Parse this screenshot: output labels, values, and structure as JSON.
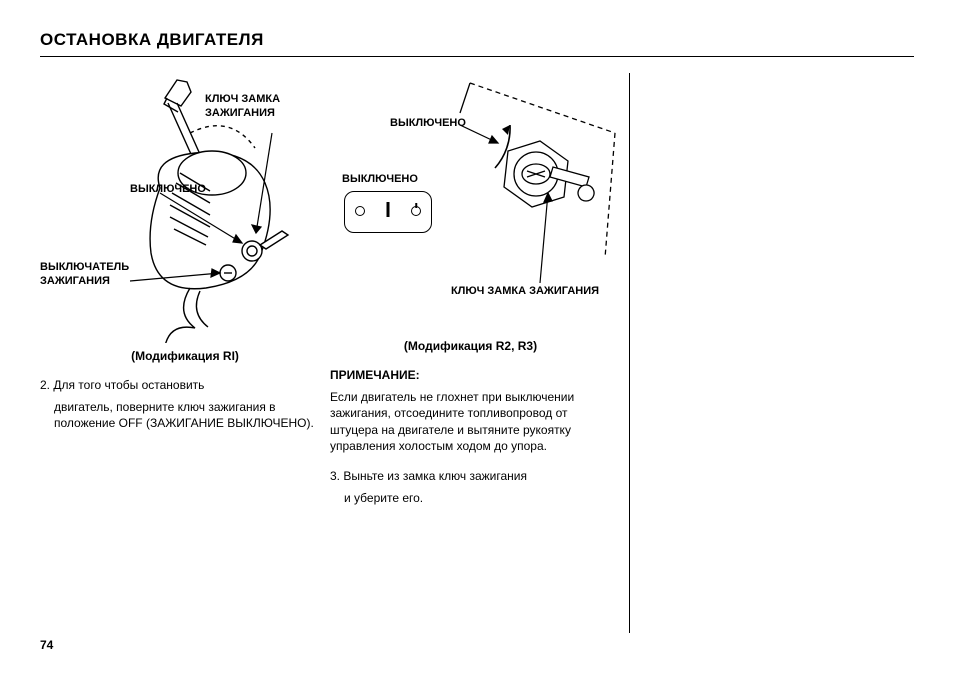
{
  "page": {
    "title": "ОСТАНОВКА ДВИГАТЕЛЯ",
    "number": "74"
  },
  "left": {
    "labels": {
      "ignition_key": "КЛЮЧ ЗАМКА\nЗАЖИГАНИЯ",
      "off": "ВЫКЛЮЧЕНО",
      "ignition_switch": "ВЫКЛЮЧАТЕЛЬ\nЗАЖИГАНИЯ"
    },
    "modification": "(Модификация RI)",
    "step2": "2. Для того чтобы остановить",
    "step2_cont": "двигатель, поверните ключ зажигания в положение OFF (ЗАЖИГАНИЕ ВЫКЛЮЧЕНО)."
  },
  "mid": {
    "labels": {
      "off_arrow": "ВЫКЛЮЧЕНО",
      "off_plate": "ВЫКЛЮЧЕНО",
      "ignition_key": "КЛЮЧ ЗАМКА ЗАЖИГАНИЯ"
    },
    "modification": "(Модификация R2, R3)",
    "note_hdr": "ПРИМЕЧАНИЕ:",
    "note_body": "Если двигатель не глохнет при выключении зажигания, отсоедините топливопровод от штуцера на двигателе и вытяните рукоятку управления холостым ходом до упора.",
    "step3": "3. Выньте из замка ключ зажигания",
    "step3_cont": "и уберите его."
  },
  "style": {
    "text_color": "#000000",
    "bg_color": "#ffffff",
    "rule_color": "#000000",
    "title_fontsize": 17,
    "label_fontsize": 11,
    "body_fontsize": 12
  }
}
